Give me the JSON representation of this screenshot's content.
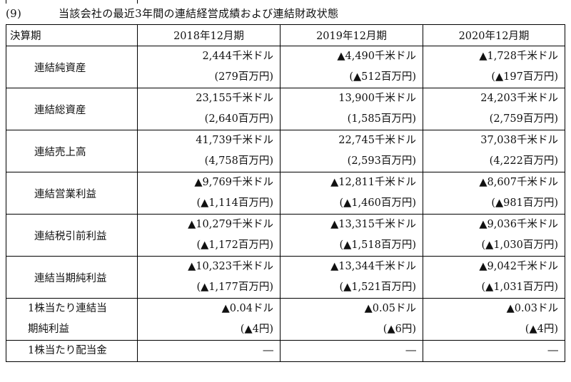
{
  "heading": {
    "number": "(9)",
    "title": "当該会社の最近3年間の連結経営成績および連結財政状態"
  },
  "table": {
    "header": {
      "label": "決算期",
      "periods": [
        "2018年12月期",
        "2019年12月期",
        "2020年12月期"
      ]
    },
    "rows": [
      {
        "label": "連結純資産",
        "values": [
          {
            "usd": "2,444千米ドル",
            "jpy": "(279百万円)"
          },
          {
            "usd": "▲4,490千米ドル",
            "jpy": "(▲512百万円)"
          },
          {
            "usd": "▲1,728千米ドル",
            "jpy": "(▲197百万円)"
          }
        ]
      },
      {
        "label": "連結総資産",
        "values": [
          {
            "usd": "23,155千米ドル",
            "jpy": "(2,640百万円)"
          },
          {
            "usd": "13,900千米ドル",
            "jpy": "(1,585百万円)"
          },
          {
            "usd": "24,203千米ドル",
            "jpy": "(2,759百万円)"
          }
        ]
      },
      {
        "label": "連結売上高",
        "values": [
          {
            "usd": "41,739千米ドル",
            "jpy": "(4,758百万円)"
          },
          {
            "usd": "22,745千米ドル",
            "jpy": "(2,593百万円)"
          },
          {
            "usd": "37,038千米ドル",
            "jpy": "(4,222百万円)"
          }
        ]
      },
      {
        "label": "連結営業利益",
        "values": [
          {
            "usd": "▲9,769千米ドル",
            "jpy": "(▲1,114百万円)"
          },
          {
            "usd": "▲12,811千米ドル",
            "jpy": "(▲1,460百万円)"
          },
          {
            "usd": "▲8,607千米ドル",
            "jpy": "(▲981百万円)"
          }
        ]
      },
      {
        "label": "連結税引前利益",
        "values": [
          {
            "usd": "▲10,279千米ドル",
            "jpy": "(▲1,172百万円)"
          },
          {
            "usd": "▲13,315千米ドル",
            "jpy": "(▲1,518百万円)"
          },
          {
            "usd": "▲9,036千米ドル",
            "jpy": "(▲1,030百万円)"
          }
        ]
      },
      {
        "label": "連結当期純利益",
        "values": [
          {
            "usd": "▲10,323千米ドル",
            "jpy": "(▲1,177百万円)"
          },
          {
            "usd": "▲13,344千米ドル",
            "jpy": "(▲1,521百万円)"
          },
          {
            "usd": "▲9,042千米ドル",
            "jpy": "(▲1,031百万円)"
          }
        ]
      },
      {
        "label_line1": "1株当たり連結当",
        "label_line2": "期純利益",
        "values": [
          {
            "usd": "▲0.04ドル",
            "jpy": "(▲4円)"
          },
          {
            "usd": "▲0.05ドル",
            "jpy": "(▲6円)"
          },
          {
            "usd": "▲0.03ドル",
            "jpy": "(▲4円)"
          }
        ]
      },
      {
        "label": "1株当たり配当金",
        "values": [
          "―",
          "―",
          "―"
        ]
      }
    ]
  }
}
